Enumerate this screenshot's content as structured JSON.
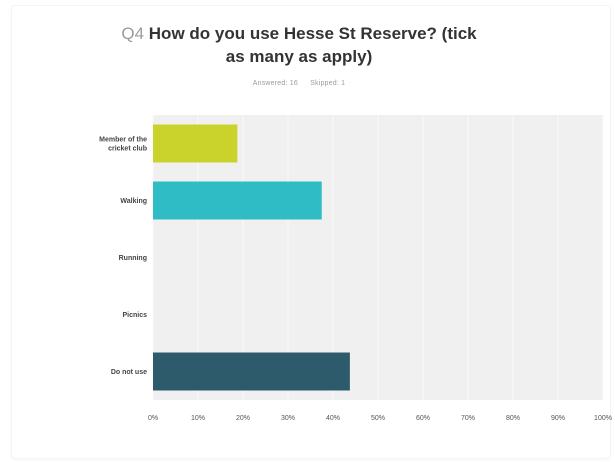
{
  "question": {
    "number": "Q4",
    "title_line1": "How do you use Hesse St Reserve? (tick",
    "title_line2": "as many as apply)"
  },
  "stats": {
    "answered": "Answered: 16",
    "skipped": "Skipped: 1"
  },
  "colors": {
    "bar_member": "#c9d32c",
    "bar_walking": "#2fbcc4",
    "bar_running": "#9b59b6",
    "bar_picnics": "#e67e22",
    "bar_donotuse": "#2d5b6b",
    "plot_bg": "#f0f0f0",
    "gridline": "#fafafa"
  },
  "chart_data": {
    "type": "bar",
    "orientation": "horizontal",
    "categories": [
      "Member of the cricket club",
      "Walking",
      "Running",
      "Picnics",
      "Do not use"
    ],
    "category_lines": [
      [
        "Member of the",
        "cricket club"
      ],
      [
        "Walking"
      ],
      [
        "Running"
      ],
      [
        "Picnics"
      ],
      [
        "Do not use"
      ]
    ],
    "values": [
      18.75,
      37.5,
      0,
      0,
      43.75
    ],
    "xlim": [
      0,
      100
    ],
    "xticks": [
      "0%",
      "10%",
      "20%",
      "30%",
      "40%",
      "50%",
      "60%",
      "70%",
      "80%",
      "90%",
      "100%"
    ],
    "grid": true
  }
}
